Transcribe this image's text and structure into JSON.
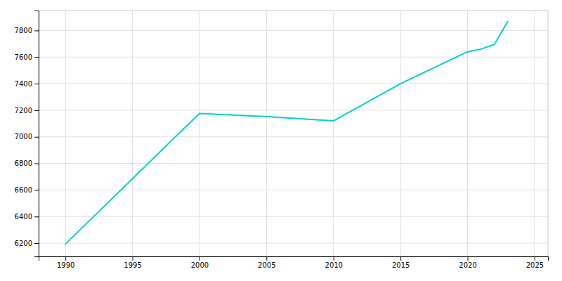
{
  "chart_data": {
    "type": "line",
    "x": [
      1990,
      2000,
      2005,
      2010,
      2015,
      2020,
      2021,
      2022,
      2023
    ],
    "values": [
      6193,
      7176,
      7152,
      7120,
      7400,
      7640,
      7660,
      7695,
      7868
    ],
    "color": "#00CED1",
    "xlim": [
      1988,
      2026
    ],
    "ylim": [
      6100,
      7950
    ],
    "xticks": [
      1990,
      1995,
      2000,
      2005,
      2010,
      2015,
      2020,
      2025
    ],
    "yticks": [
      6200,
      6400,
      6600,
      6800,
      7000,
      7200,
      7400,
      7600,
      7800
    ],
    "grid": true
  }
}
